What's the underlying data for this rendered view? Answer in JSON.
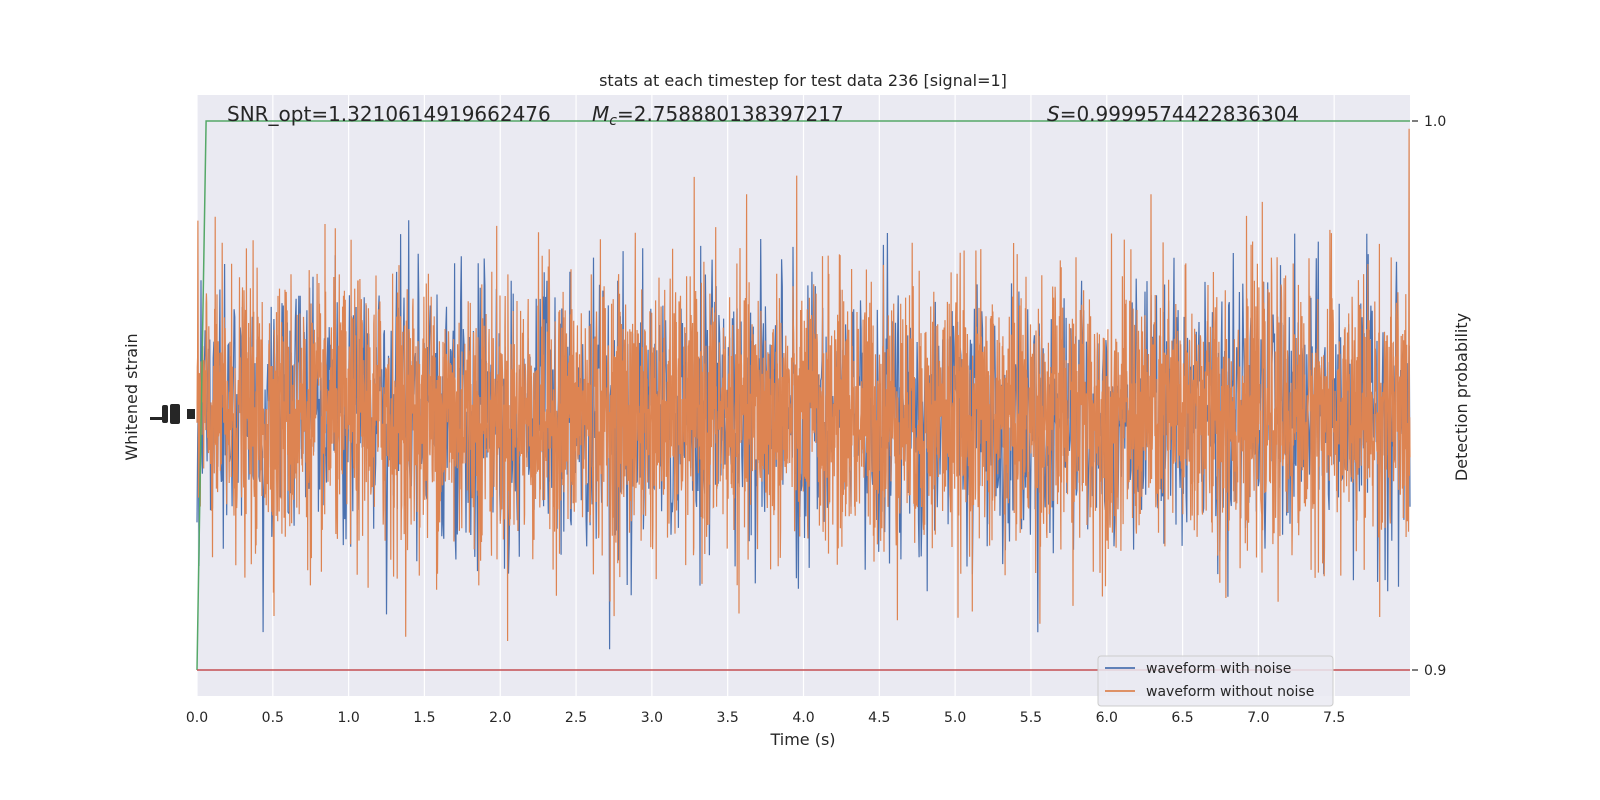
{
  "chart_data": {
    "type": "line",
    "title": "stats at each timestep for test data 236 [signal=1]",
    "xlabel": "Time (s)",
    "ylabel_left": "Whitened strain",
    "ylabel_right": "Detection probability",
    "xlim": [
      0.0,
      8.0
    ],
    "x_ticks": [
      "0.0",
      "0.5",
      "1.0",
      "1.5",
      "2.0",
      "2.5",
      "3.0",
      "3.5",
      "4.0",
      "4.5",
      "5.0",
      "5.5",
      "6.0",
      "6.5",
      "7.0",
      "7.5"
    ],
    "right_ylim": [
      0.9,
      1.0
    ],
    "right_ticks": [
      "1.0",
      "0.9"
    ],
    "left_ylim": [
      -2.2,
      2.2
    ],
    "annotations": {
      "snr": "SNR_opt=1.3210614919662476",
      "mc_symbol": "M",
      "mc_sub": "c",
      "mc_value": "=2.758880138397217",
      "s_symbol": "S",
      "s_value": "=0.9999574422836304"
    },
    "series": [
      {
        "name": "waveform with noise",
        "color": "#4c72b0",
        "axis": "left",
        "noise_std": 0.5,
        "x_range": [
          0.0,
          8.0
        ]
      },
      {
        "name": "waveform without noise",
        "color": "#dd8452",
        "axis": "left",
        "noise_std": 0.5,
        "x_range": [
          0.0,
          8.0
        ]
      },
      {
        "color": "#55a868",
        "axis": "right",
        "x": [
          0.0,
          0.06,
          8.0
        ],
        "y": [
          0.9,
          1.0,
          1.0
        ]
      },
      {
        "color": "#c44e52",
        "axis": "right",
        "x": [
          0.0,
          8.0
        ],
        "y": [
          0.9,
          0.9
        ]
      }
    ],
    "legend": {
      "position": "lower-right",
      "entries": [
        "waveform with noise",
        "waveform without noise"
      ]
    },
    "grid": true,
    "background": "#eaeaf2"
  }
}
